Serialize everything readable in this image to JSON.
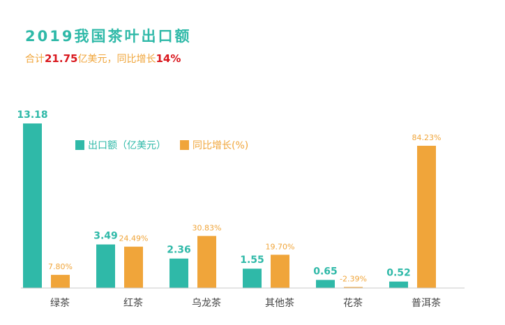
{
  "header": {
    "title": "2019我国茶叶出口额",
    "subtitle_prefix": "合计",
    "subtitle_total": "21.75",
    "subtitle_mid": "亿美元，同比增长",
    "subtitle_growth": "14%"
  },
  "colors": {
    "primary": "#2fb9a8",
    "secondary": "#f0a53a",
    "highlight": "#d9161c"
  },
  "chart_data": {
    "type": "bar",
    "categories": [
      "绿茶",
      "红茶",
      "乌龙茶",
      "其他茶",
      "花茶",
      "普洱茶"
    ],
    "series": [
      {
        "name": "出口额（亿美元）",
        "values": [
          13.18,
          3.49,
          2.36,
          1.55,
          0.65,
          0.52
        ],
        "labels": [
          "13.18",
          "3.49",
          "2.36",
          "1.55",
          "0.65",
          "0.52"
        ]
      },
      {
        "name": "同比增长(%)",
        "values": [
          7.8,
          24.49,
          30.83,
          19.7,
          -2.39,
          84.23
        ],
        "labels": [
          "7.80%",
          "24.49%",
          "30.83%",
          "19.70%",
          "-2.39%",
          "84.23%"
        ]
      }
    ],
    "legend_position": "top-center",
    "grid": false
  }
}
